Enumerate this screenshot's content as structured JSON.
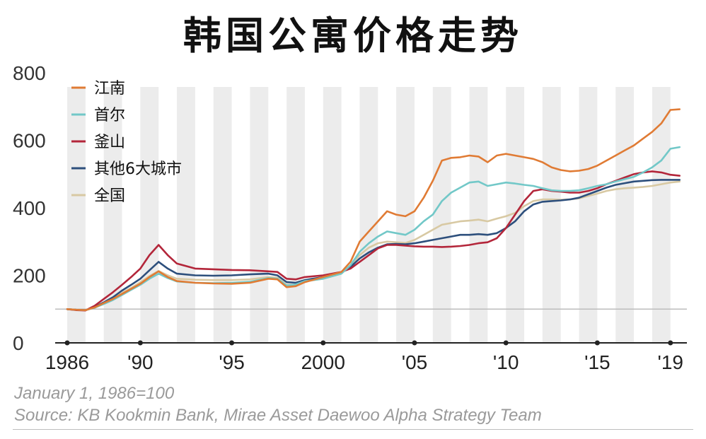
{
  "chart_data": {
    "type": "line",
    "title": "韩国公寓价格走势",
    "xlabel": "",
    "ylabel": "",
    "ylim": [
      0,
      800
    ],
    "yticks": [
      0,
      200,
      400,
      600,
      800
    ],
    "xlim": [
      1986.0,
      2019.9
    ],
    "xticks": [
      {
        "value": 1986,
        "label": "1986"
      },
      {
        "value": 1990,
        "label": "'90"
      },
      {
        "value": 1995,
        "label": "'95"
      },
      {
        "value": 2000,
        "label": "2000"
      },
      {
        "value": 2005,
        "label": "'05"
      },
      {
        "value": 2010,
        "label": "'10"
      },
      {
        "value": 2015,
        "label": "'15"
      },
      {
        "value": 2019,
        "label": "'19"
      }
    ],
    "reference_line": 100,
    "shaded_bands": "alternate years",
    "legend_position": "top-left",
    "series": [
      {
        "name": "江南",
        "color": "#e07b34",
        "points": [
          [
            1986,
            100
          ],
          [
            1986.5,
            98
          ],
          [
            1987,
            97
          ],
          [
            1987.5,
            105
          ],
          [
            1988,
            118
          ],
          [
            1988.5,
            130
          ],
          [
            1989,
            145
          ],
          [
            1989.5,
            160
          ],
          [
            1990,
            175
          ],
          [
            1990.5,
            195
          ],
          [
            1991,
            212
          ],
          [
            1991.5,
            195
          ],
          [
            1992,
            183
          ],
          [
            1993,
            178
          ],
          [
            1994,
            176
          ],
          [
            1995,
            175
          ],
          [
            1996,
            178
          ],
          [
            1997,
            190
          ],
          [
            1997.5,
            188
          ],
          [
            1998,
            165
          ],
          [
            1998.5,
            168
          ],
          [
            1999,
            180
          ],
          [
            2000,
            195
          ],
          [
            2001,
            210
          ],
          [
            2001.5,
            240
          ],
          [
            2002,
            300
          ],
          [
            2002.5,
            330
          ],
          [
            2003,
            360
          ],
          [
            2003.5,
            390
          ],
          [
            2004,
            380
          ],
          [
            2004.5,
            375
          ],
          [
            2005,
            390
          ],
          [
            2005.5,
            430
          ],
          [
            2006,
            480
          ],
          [
            2006.5,
            540
          ],
          [
            2007,
            548
          ],
          [
            2007.5,
            550
          ],
          [
            2008,
            555
          ],
          [
            2008.5,
            552
          ],
          [
            2009,
            535
          ],
          [
            2009.5,
            555
          ],
          [
            2010,
            560
          ],
          [
            2010.5,
            555
          ],
          [
            2011,
            550
          ],
          [
            2011.5,
            545
          ],
          [
            2012,
            535
          ],
          [
            2012.5,
            520
          ],
          [
            2013,
            512
          ],
          [
            2013.5,
            508
          ],
          [
            2014,
            510
          ],
          [
            2014.5,
            515
          ],
          [
            2015,
            525
          ],
          [
            2015.5,
            540
          ],
          [
            2016,
            555
          ],
          [
            2016.5,
            570
          ],
          [
            2017,
            585
          ],
          [
            2017.5,
            605
          ],
          [
            2018,
            625
          ],
          [
            2018.5,
            650
          ],
          [
            2019,
            690
          ],
          [
            2019.5,
            692
          ]
        ]
      },
      {
        "name": "首尔",
        "color": "#72c8c8",
        "points": [
          [
            1986,
            100
          ],
          [
            1986.5,
            98
          ],
          [
            1987,
            97
          ],
          [
            1987.5,
            104
          ],
          [
            1988,
            115
          ],
          [
            1988.5,
            127
          ],
          [
            1989,
            142
          ],
          [
            1989.5,
            157
          ],
          [
            1990,
            172
          ],
          [
            1990.5,
            190
          ],
          [
            1991,
            205
          ],
          [
            1991.5,
            192
          ],
          [
            1992,
            182
          ],
          [
            1993,
            178
          ],
          [
            1994,
            177
          ],
          [
            1995,
            178
          ],
          [
            1996,
            181
          ],
          [
            1997,
            192
          ],
          [
            1997.5,
            190
          ],
          [
            1998,
            170
          ],
          [
            1998.5,
            173
          ],
          [
            1999,
            183
          ],
          [
            2000,
            190
          ],
          [
            2001,
            205
          ],
          [
            2001.5,
            230
          ],
          [
            2002,
            270
          ],
          [
            2002.5,
            295
          ],
          [
            2003,
            315
          ],
          [
            2003.5,
            330
          ],
          [
            2004,
            325
          ],
          [
            2004.5,
            320
          ],
          [
            2005,
            335
          ],
          [
            2005.5,
            360
          ],
          [
            2006,
            380
          ],
          [
            2006.5,
            420
          ],
          [
            2007,
            445
          ],
          [
            2007.5,
            460
          ],
          [
            2008,
            475
          ],
          [
            2008.5,
            478
          ],
          [
            2009,
            465
          ],
          [
            2009.5,
            470
          ],
          [
            2010,
            475
          ],
          [
            2010.5,
            472
          ],
          [
            2011,
            468
          ],
          [
            2011.5,
            465
          ],
          [
            2012,
            458
          ],
          [
            2012.5,
            452
          ],
          [
            2013,
            450
          ],
          [
            2013.5,
            450
          ],
          [
            2014,
            452
          ],
          [
            2014.5,
            458
          ],
          [
            2015,
            465
          ],
          [
            2015.5,
            470
          ],
          [
            2016,
            478
          ],
          [
            2016.5,
            485
          ],
          [
            2017,
            492
          ],
          [
            2017.5,
            505
          ],
          [
            2018,
            520
          ],
          [
            2018.5,
            540
          ],
          [
            2019,
            575
          ],
          [
            2019.5,
            580
          ]
        ]
      },
      {
        "name": "釜山",
        "color": "#b3263a",
        "points": [
          [
            1986,
            100
          ],
          [
            1986.5,
            97
          ],
          [
            1987,
            96
          ],
          [
            1987.5,
            110
          ],
          [
            1988,
            130
          ],
          [
            1988.5,
            150
          ],
          [
            1989,
            172
          ],
          [
            1989.5,
            195
          ],
          [
            1990,
            220
          ],
          [
            1990.5,
            260
          ],
          [
            1991,
            290
          ],
          [
            1991.5,
            260
          ],
          [
            1992,
            235
          ],
          [
            1993,
            220
          ],
          [
            1994,
            218
          ],
          [
            1995,
            216
          ],
          [
            1996,
            215
          ],
          [
            1997,
            212
          ],
          [
            1997.5,
            210
          ],
          [
            1998,
            190
          ],
          [
            1998.5,
            188
          ],
          [
            1999,
            195
          ],
          [
            2000,
            200
          ],
          [
            2001,
            210
          ],
          [
            2001.5,
            220
          ],
          [
            2002,
            240
          ],
          [
            2002.5,
            260
          ],
          [
            2003,
            280
          ],
          [
            2003.5,
            290
          ],
          [
            2004,
            290
          ],
          [
            2004.5,
            288
          ],
          [
            2005,
            286
          ],
          [
            2005.5,
            285
          ],
          [
            2006,
            285
          ],
          [
            2006.5,
            284
          ],
          [
            2007,
            285
          ],
          [
            2007.5,
            287
          ],
          [
            2008,
            290
          ],
          [
            2008.5,
            295
          ],
          [
            2009,
            298
          ],
          [
            2009.5,
            310
          ],
          [
            2010,
            340
          ],
          [
            2010.5,
            380
          ],
          [
            2011,
            420
          ],
          [
            2011.5,
            450
          ],
          [
            2012,
            455
          ],
          [
            2012.5,
            450
          ],
          [
            2013,
            448
          ],
          [
            2013.5,
            445
          ],
          [
            2014,
            445
          ],
          [
            2014.5,
            450
          ],
          [
            2015,
            458
          ],
          [
            2015.5,
            470
          ],
          [
            2016,
            480
          ],
          [
            2016.5,
            490
          ],
          [
            2017,
            500
          ],
          [
            2017.5,
            505
          ],
          [
            2018,
            508
          ],
          [
            2018.5,
            505
          ],
          [
            2019,
            498
          ],
          [
            2019.5,
            495
          ]
        ]
      },
      {
        "name": "其他6大城市",
        "color": "#2d4f7c",
        "points": [
          [
            1986,
            100
          ],
          [
            1986.5,
            98
          ],
          [
            1987,
            97
          ],
          [
            1987.5,
            106
          ],
          [
            1988,
            120
          ],
          [
            1988.5,
            135
          ],
          [
            1989,
            155
          ],
          [
            1989.5,
            172
          ],
          [
            1990,
            190
          ],
          [
            1990.5,
            215
          ],
          [
            1991,
            240
          ],
          [
            1991.5,
            220
          ],
          [
            1992,
            205
          ],
          [
            1993,
            200
          ],
          [
            1994,
            199
          ],
          [
            1995,
            200
          ],
          [
            1996,
            203
          ],
          [
            1997,
            205
          ],
          [
            1997.5,
            200
          ],
          [
            1998,
            180
          ],
          [
            1998.5,
            178
          ],
          [
            1999,
            186
          ],
          [
            2000,
            195
          ],
          [
            2001,
            208
          ],
          [
            2001.5,
            225
          ],
          [
            2002,
            250
          ],
          [
            2002.5,
            268
          ],
          [
            2003,
            282
          ],
          [
            2003.5,
            292
          ],
          [
            2004,
            293
          ],
          [
            2004.5,
            292
          ],
          [
            2005,
            295
          ],
          [
            2005.5,
            300
          ],
          [
            2006,
            305
          ],
          [
            2006.5,
            310
          ],
          [
            2007,
            315
          ],
          [
            2007.5,
            320
          ],
          [
            2008,
            320
          ],
          [
            2008.5,
            322
          ],
          [
            2009,
            320
          ],
          [
            2009.5,
            325
          ],
          [
            2010,
            340
          ],
          [
            2010.5,
            360
          ],
          [
            2011,
            390
          ],
          [
            2011.5,
            410
          ],
          [
            2012,
            418
          ],
          [
            2012.5,
            420
          ],
          [
            2013,
            422
          ],
          [
            2013.5,
            425
          ],
          [
            2014,
            430
          ],
          [
            2014.5,
            440
          ],
          [
            2015,
            450
          ],
          [
            2015.5,
            460
          ],
          [
            2016,
            468
          ],
          [
            2016.5,
            473
          ],
          [
            2017,
            478
          ],
          [
            2017.5,
            480
          ],
          [
            2018,
            482
          ],
          [
            2018.5,
            483
          ],
          [
            2019,
            483
          ],
          [
            2019.5,
            483
          ]
        ]
      },
      {
        "name": "全国",
        "color": "#d8c9a3",
        "points": [
          [
            1986,
            100
          ],
          [
            1986.5,
            98
          ],
          [
            1987,
            97
          ],
          [
            1987.5,
            105
          ],
          [
            1988,
            118
          ],
          [
            1988.5,
            131
          ],
          [
            1989,
            148
          ],
          [
            1989.5,
            163
          ],
          [
            1990,
            180
          ],
          [
            1990.5,
            198
          ],
          [
            1991,
            213
          ],
          [
            1991.5,
            200
          ],
          [
            1992,
            190
          ],
          [
            1993,
            187
          ],
          [
            1994,
            186
          ],
          [
            1995,
            186
          ],
          [
            1996,
            188
          ],
          [
            1997,
            195
          ],
          [
            1997.5,
            193
          ],
          [
            1998,
            172
          ],
          [
            1998.5,
            172
          ],
          [
            1999,
            182
          ],
          [
            2000,
            190
          ],
          [
            2001,
            205
          ],
          [
            2001.5,
            230
          ],
          [
            2002,
            260
          ],
          [
            2002.5,
            282
          ],
          [
            2003,
            295
          ],
          [
            2003.5,
            300
          ],
          [
            2004,
            298
          ],
          [
            2004.5,
            296
          ],
          [
            2005,
            305
          ],
          [
            2005.5,
            320
          ],
          [
            2006,
            335
          ],
          [
            2006.5,
            350
          ],
          [
            2007,
            355
          ],
          [
            2007.5,
            360
          ],
          [
            2008,
            362
          ],
          [
            2008.5,
            365
          ],
          [
            2009,
            360
          ],
          [
            2009.5,
            368
          ],
          [
            2010,
            375
          ],
          [
            2010.5,
            385
          ],
          [
            2011,
            405
          ],
          [
            2011.5,
            420
          ],
          [
            2012,
            425
          ],
          [
            2012.5,
            425
          ],
          [
            2013,
            424
          ],
          [
            2013.5,
            425
          ],
          [
            2014,
            428
          ],
          [
            2014.5,
            435
          ],
          [
            2015,
            442
          ],
          [
            2015.5,
            450
          ],
          [
            2016,
            455
          ],
          [
            2016.5,
            458
          ],
          [
            2017,
            460
          ],
          [
            2017.5,
            462
          ],
          [
            2018,
            465
          ],
          [
            2018.5,
            470
          ],
          [
            2019,
            475
          ],
          [
            2019.5,
            478
          ]
        ]
      }
    ]
  },
  "footnote": {
    "base_note": "January 1, 1986=100",
    "source": "Source: KB Kookmin Bank, Mirae Asset Daewoo Alpha Strategy Team"
  }
}
